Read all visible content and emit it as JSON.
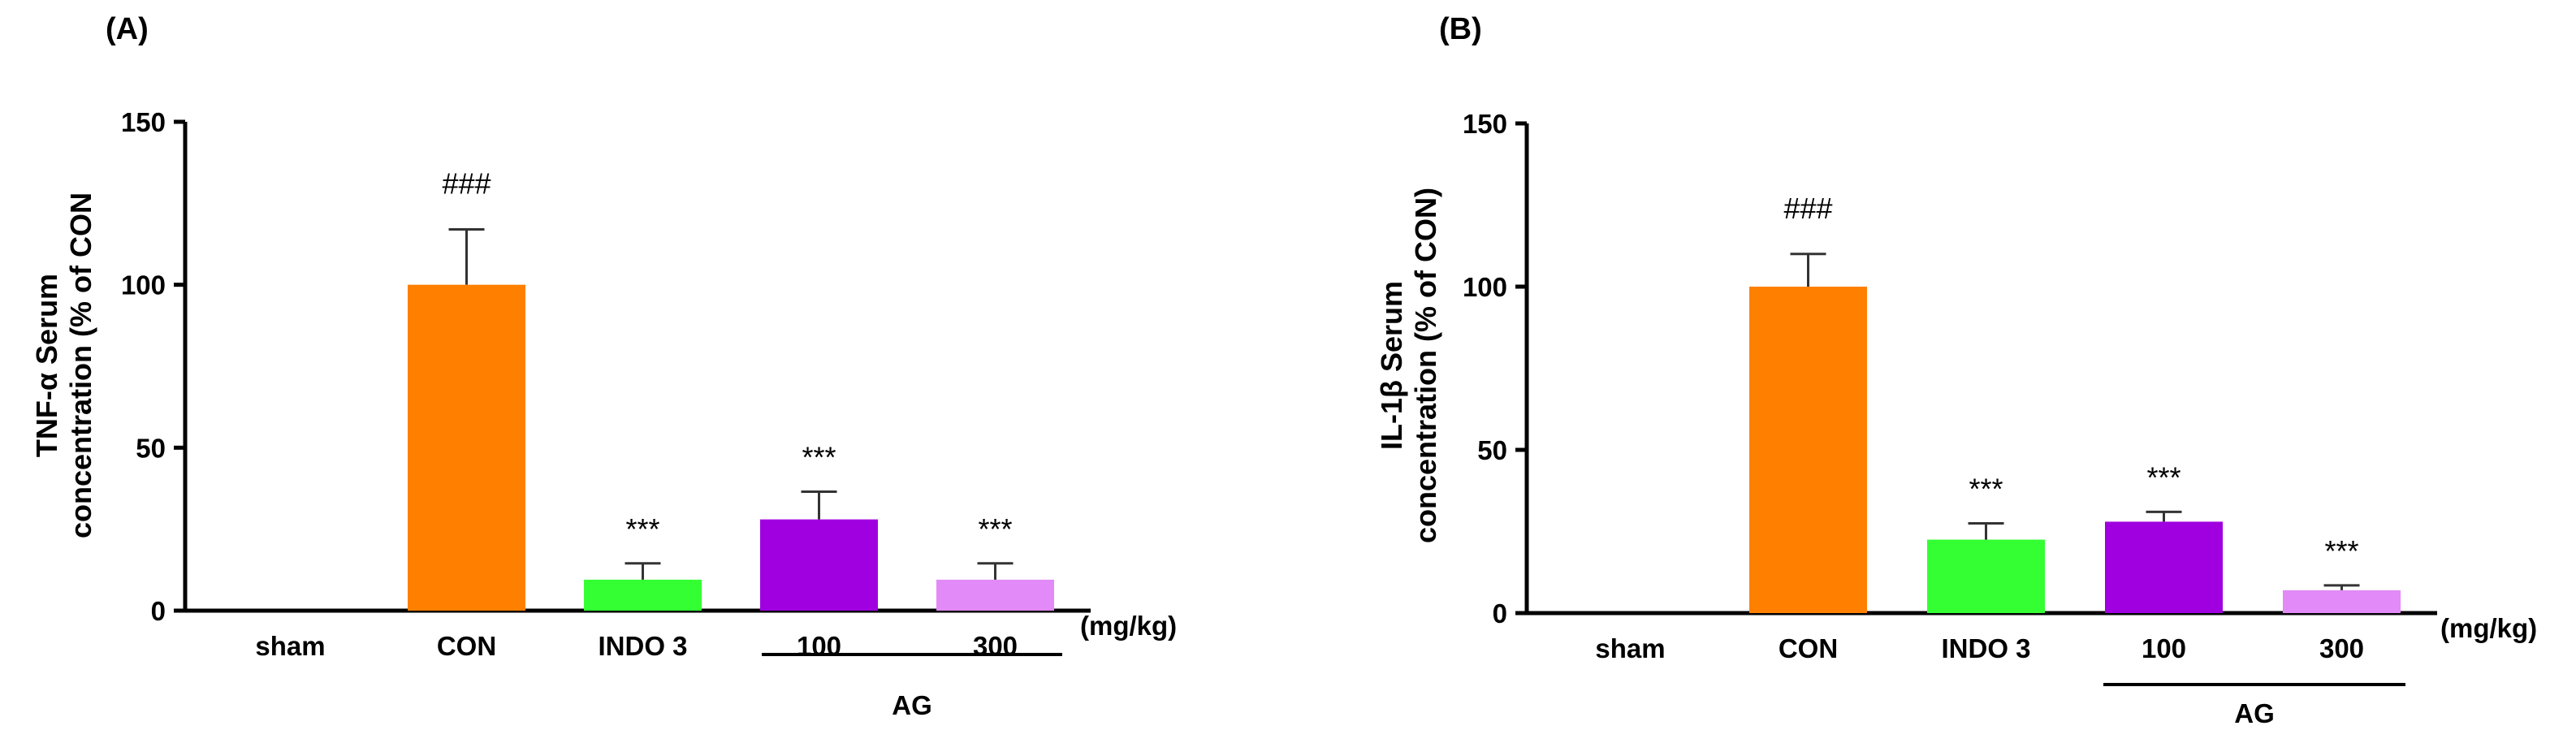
{
  "chart_data": [
    {
      "type": "bar",
      "panel_label": "(A)",
      "ylabel_lines": [
        "TNF-α Serum",
        "concentration (% of CON"
      ],
      "categories": [
        "sham",
        "CON",
        "INDO 3",
        "100",
        "300"
      ],
      "values": [
        0,
        100,
        9.5,
        28,
        9.5
      ],
      "errors": [
        0,
        17,
        5,
        8.5,
        5
      ],
      "colors": [
        "#ffffff",
        "#ff8000",
        "#33ff33",
        "#a000e0",
        "#e28af7"
      ],
      "annotations": [
        "",
        "###",
        "***",
        "***",
        "***"
      ],
      "ylim": [
        0,
        150
      ],
      "yticks": [
        "0",
        "50",
        "100",
        "150"
      ],
      "unit_label": "(mg/kg)",
      "group_label": "AG"
    },
    {
      "type": "bar",
      "panel_label": "(B)",
      "ylabel_lines": [
        "IL-1β Serum",
        "concentration (% of CON)"
      ],
      "categories": [
        "sham",
        "CON",
        "INDO 3",
        "100",
        "300"
      ],
      "values": [
        0,
        100,
        22.5,
        28,
        7
      ],
      "errors": [
        0,
        10,
        5,
        3,
        1.5
      ],
      "colors": [
        "#ffffff",
        "#ff8000",
        "#33ff33",
        "#a000e0",
        "#e28af7"
      ],
      "annotations": [
        "",
        "###",
        "***",
        "***",
        "***"
      ],
      "ylim": [
        0,
        150
      ],
      "yticks": [
        "0",
        "50",
        "100",
        "150"
      ],
      "unit_label": "(mg/kg)",
      "group_label": "AG"
    }
  ]
}
